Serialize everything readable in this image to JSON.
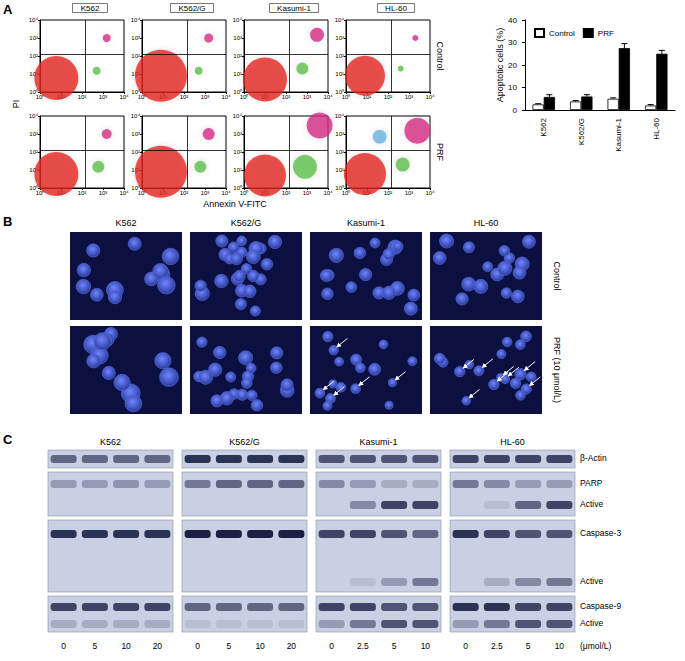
{
  "panel_labels": [
    "A",
    "B",
    "C"
  ],
  "chart_data": [
    {
      "type": "scatter",
      "log": true,
      "xlabel": "Annexin V-FITC",
      "ylabel": "PI",
      "columns": [
        "K562",
        "K562/G",
        "Kasumi-1",
        "HL-60"
      ],
      "rows": [
        "Control",
        "PRF"
      ],
      "xlim": [
        1,
        10000
      ],
      "ylim": [
        1,
        10000
      ],
      "xticks": [
        {
          "value": 1,
          "label": "10⁰"
        },
        {
          "value": 10,
          "label": "10¹"
        },
        {
          "value": 100,
          "label": "10²"
        },
        {
          "value": 1000,
          "label": "10³"
        },
        {
          "value": 10000,
          "label": "10⁴"
        }
      ],
      "yticks": [
        {
          "value": 1,
          "label": "10⁰"
        },
        {
          "value": 10,
          "label": "10¹"
        },
        {
          "value": 100,
          "label": "10²"
        },
        {
          "value": 1000,
          "label": "10³"
        },
        {
          "value": 10000,
          "label": "10⁴"
        }
      ],
      "gates": {
        "x": 150,
        "y": 120
      },
      "panels": [
        [
          {
            "x": [
              6,
              500,
              1500
            ],
            "y": [
              6,
              15,
              1000
            ],
            "sizes": [
              44,
              8,
              8
            ],
            "colors": [
              "#e3261e",
              "#5cbf4a",
              "#d42d86"
            ]
          },
          {
            "x": [
              8,
              500,
              1500
            ],
            "y": [
              8,
              15,
              1000
            ],
            "sizes": [
              52,
              8,
              9
            ],
            "colors": [
              "#e3261e",
              "#5cbf4a",
              "#d42d86"
            ]
          },
          {
            "x": [
              10,
              600,
              3000
            ],
            "y": [
              5,
              20,
              1500
            ],
            "sizes": [
              44,
              12,
              14
            ],
            "colors": [
              "#e3261e",
              "#5cbf4a",
              "#d42d86"
            ]
          },
          {
            "x": [
              8,
              400,
              2000
            ],
            "y": [
              8,
              20,
              1000
            ],
            "sizes": [
              40,
              6,
              6
            ],
            "colors": [
              "#e3261e",
              "#5cbf4a",
              "#d42d86"
            ]
          }
        ],
        [
          {
            "x": [
              6,
              600,
              1500
            ],
            "y": [
              6,
              15,
              1000
            ],
            "sizes": [
              44,
              12,
              10
            ],
            "colors": [
              "#e3261e",
              "#5cbf4a",
              "#d42d86"
            ]
          },
          {
            "x": [
              8,
              600,
              1500
            ],
            "y": [
              8,
              15,
              1000
            ],
            "sizes": [
              52,
              12,
              12
            ],
            "colors": [
              "#e3261e",
              "#5cbf4a",
              "#d42d86"
            ]
          },
          {
            "x": [
              10,
              800,
              4000
            ],
            "y": [
              5,
              15,
              3000
            ],
            "sizes": [
              42,
              24,
              26
            ],
            "colors": [
              "#e3261e",
              "#5cbf4a",
              "#d42d86"
            ]
          },
          {
            "x": [
              8,
              500,
              2500,
              40
            ],
            "y": [
              6,
              20,
              1500,
              700
            ],
            "sizes": [
              42,
              14,
              26,
              14
            ],
            "colors": [
              "#e3261e",
              "#5cbf4a",
              "#d42d86",
              "#6bb4e0"
            ]
          }
        ]
      ]
    },
    {
      "type": "bar",
      "ylabel": "Apoptotic cells (%)",
      "categories": [
        "K562",
        "K562/G",
        "Kasumi-1",
        "HL-60"
      ],
      "series": [
        {
          "name": "Control",
          "color": "#ffffff",
          "values": [
            2.5,
            3.8,
            5,
            2
          ],
          "errors": [
            0.3,
            0.4,
            0.4,
            0.4
          ]
        },
        {
          "name": "PRF",
          "color": "#000000",
          "values": [
            5.8,
            6,
            27.5,
            25
          ],
          "errors": [
            1,
            0.8,
            2,
            1.5
          ]
        }
      ],
      "ylim": [
        0,
        40
      ],
      "yticks": [
        0,
        10,
        20,
        30,
        40
      ],
      "legend": "top-left"
    }
  ],
  "panel_b": {
    "columns": [
      "K562",
      "K562/G",
      "Kasumi-1",
      "HL-60"
    ],
    "rows": [
      "Control",
      "PRF (10 μmol/L)"
    ],
    "arrows": [
      [
        0,
        0,
        0,
        0
      ],
      [
        0,
        0,
        5,
        8
      ]
    ]
  },
  "panel_c": {
    "columns": [
      "K562",
      "K562/G",
      "Kasumi-1",
      "HL-60"
    ],
    "doses": [
      [
        0,
        5,
        10,
        20
      ],
      [
        0,
        5,
        10,
        20
      ],
      [
        0,
        2.5,
        5,
        10
      ],
      [
        0,
        2.5,
        5,
        10
      ]
    ],
    "dose_unit": "(μmol/L)",
    "rows": [
      {
        "label": "β-Actin",
        "intensity": [
          [
            0.6,
            0.6,
            0.6,
            0.6
          ],
          [
            0.9,
            0.9,
            0.9,
            0.9
          ],
          [
            0.7,
            0.7,
            0.7,
            0.7
          ],
          [
            0.8,
            0.8,
            0.8,
            0.8
          ]
        ]
      },
      {
        "label": "PARP",
        "intensity": [
          [
            0.3,
            0.3,
            0.35,
            0.3
          ],
          [
            0.5,
            0.6,
            0.6,
            0.6
          ],
          [
            0.4,
            0.3,
            0.2,
            0.2
          ],
          [
            0.5,
            0.4,
            0.3,
            0.3
          ]
        ]
      },
      {
        "label": "Active",
        "intensity": [
          [
            0,
            0,
            0,
            0
          ],
          [
            0,
            0,
            0,
            0
          ],
          [
            0,
            0.4,
            0.8,
            0.8
          ],
          [
            0,
            0.1,
            0.6,
            0.8
          ]
        ]
      },
      {
        "label": "Caspase-3",
        "intensity": [
          [
            0.9,
            0.9,
            0.9,
            0.9
          ],
          [
            1,
            1,
            1,
            1
          ],
          [
            0.8,
            0.8,
            0.7,
            0.6
          ],
          [
            0.9,
            0.8,
            0.7,
            0.7
          ]
        ]
      },
      {
        "label": "Active",
        "intensity": [
          [
            0,
            0,
            0,
            0
          ],
          [
            0,
            0,
            0,
            0
          ],
          [
            0,
            0.1,
            0.3,
            0.5
          ],
          [
            0,
            0.2,
            0.4,
            0.5
          ]
        ]
      },
      {
        "label": "Caspase-9",
        "intensity": [
          [
            0.8,
            0.8,
            0.8,
            0.8
          ],
          [
            0.6,
            0.6,
            0.6,
            0.6
          ],
          [
            0.8,
            0.8,
            0.7,
            0.7
          ],
          [
            0.9,
            0.9,
            0.8,
            0.8
          ]
        ]
      },
      {
        "label": "Active",
        "intensity": [
          [
            0.2,
            0.2,
            0.2,
            0.2
          ],
          [
            0.1,
            0.1,
            0.1,
            0.1
          ],
          [
            0.3,
            0.5,
            0.7,
            0.7
          ],
          [
            0.3,
            0.5,
            0.7,
            0.7
          ]
        ]
      }
    ]
  }
}
